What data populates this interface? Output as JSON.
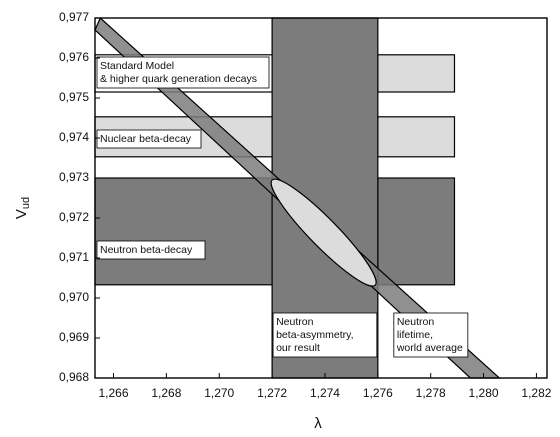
{
  "chart_data": {
    "type": "band-plot",
    "xlabel": "λ",
    "ylabel": {
      "base": "V",
      "subscript": "ud"
    },
    "xlim": [
      1.2653,
      1.2824
    ],
    "ylim": [
      0.968,
      0.977
    ],
    "xticks": [
      {
        "value": 1.266,
        "label": "1,266"
      },
      {
        "value": 1.268,
        "label": "1,268"
      },
      {
        "value": 1.27,
        "label": "1,270"
      },
      {
        "value": 1.272,
        "label": "1,272"
      },
      {
        "value": 1.274,
        "label": "1,274"
      },
      {
        "value": 1.276,
        "label": "1,276"
      },
      {
        "value": 1.278,
        "label": "1,278"
      },
      {
        "value": 1.28,
        "label": "1,280"
      },
      {
        "value": 1.282,
        "label": "1,282"
      }
    ],
    "yticks": [
      {
        "value": 0.968,
        "label": "0,968"
      },
      {
        "value": 0.969,
        "label": "0,969"
      },
      {
        "value": 0.97,
        "label": "0,970"
      },
      {
        "value": 0.971,
        "label": "0,971"
      },
      {
        "value": 0.972,
        "label": "0,972"
      },
      {
        "value": 0.973,
        "label": "0,973"
      },
      {
        "value": 0.974,
        "label": "0,974"
      },
      {
        "value": 0.975,
        "label": "0,975"
      },
      {
        "value": 0.976,
        "label": "0,976"
      },
      {
        "value": 0.977,
        "label": "0,977"
      }
    ],
    "bands": [
      {
        "label": [
          "Standard Model",
          "& higher quark generation decays"
        ],
        "y": [
          0.97515,
          0.97608
        ],
        "x_end": 1.2789,
        "colors": [
          "#ffffff",
          "#dcdcdc"
        ]
      },
      {
        "label": [
          "Nuclear beta-decay"
        ],
        "y": [
          0.97353,
          0.97453
        ],
        "x_end": 1.2789,
        "colors": [
          "#dcdcdc",
          "#dcdcdc"
        ]
      },
      {
        "label": [
          "Neutron beta-decay"
        ],
        "y": [
          0.97033,
          0.973
        ],
        "x_end": 1.2789,
        "colors": [
          "#7c7c7c",
          "#7c7c7c"
        ]
      }
    ],
    "vertical_band": {
      "label": [
        "Neutron",
        "beta-asymmetry,",
        "our result"
      ],
      "x": [
        1.272,
        1.276
      ],
      "color": "#7c7c7c"
    },
    "diagonal_band": {
      "label": [
        "Neutron",
        "lifetime,",
        "world average"
      ],
      "upper": {
        "x": [
          1.2655,
          1.2806
        ],
        "y": [
          0.977,
          0.968
        ]
      },
      "lower": {
        "x": [
          1.2653,
          1.2795
        ],
        "y": [
          0.9767,
          0.968
        ]
      },
      "color": "#7c7c7c"
    },
    "ellipse": {
      "x": [
        1.272,
        1.2759
      ],
      "y": [
        0.97295,
        0.97032
      ],
      "color": "#dcdcdc"
    }
  }
}
